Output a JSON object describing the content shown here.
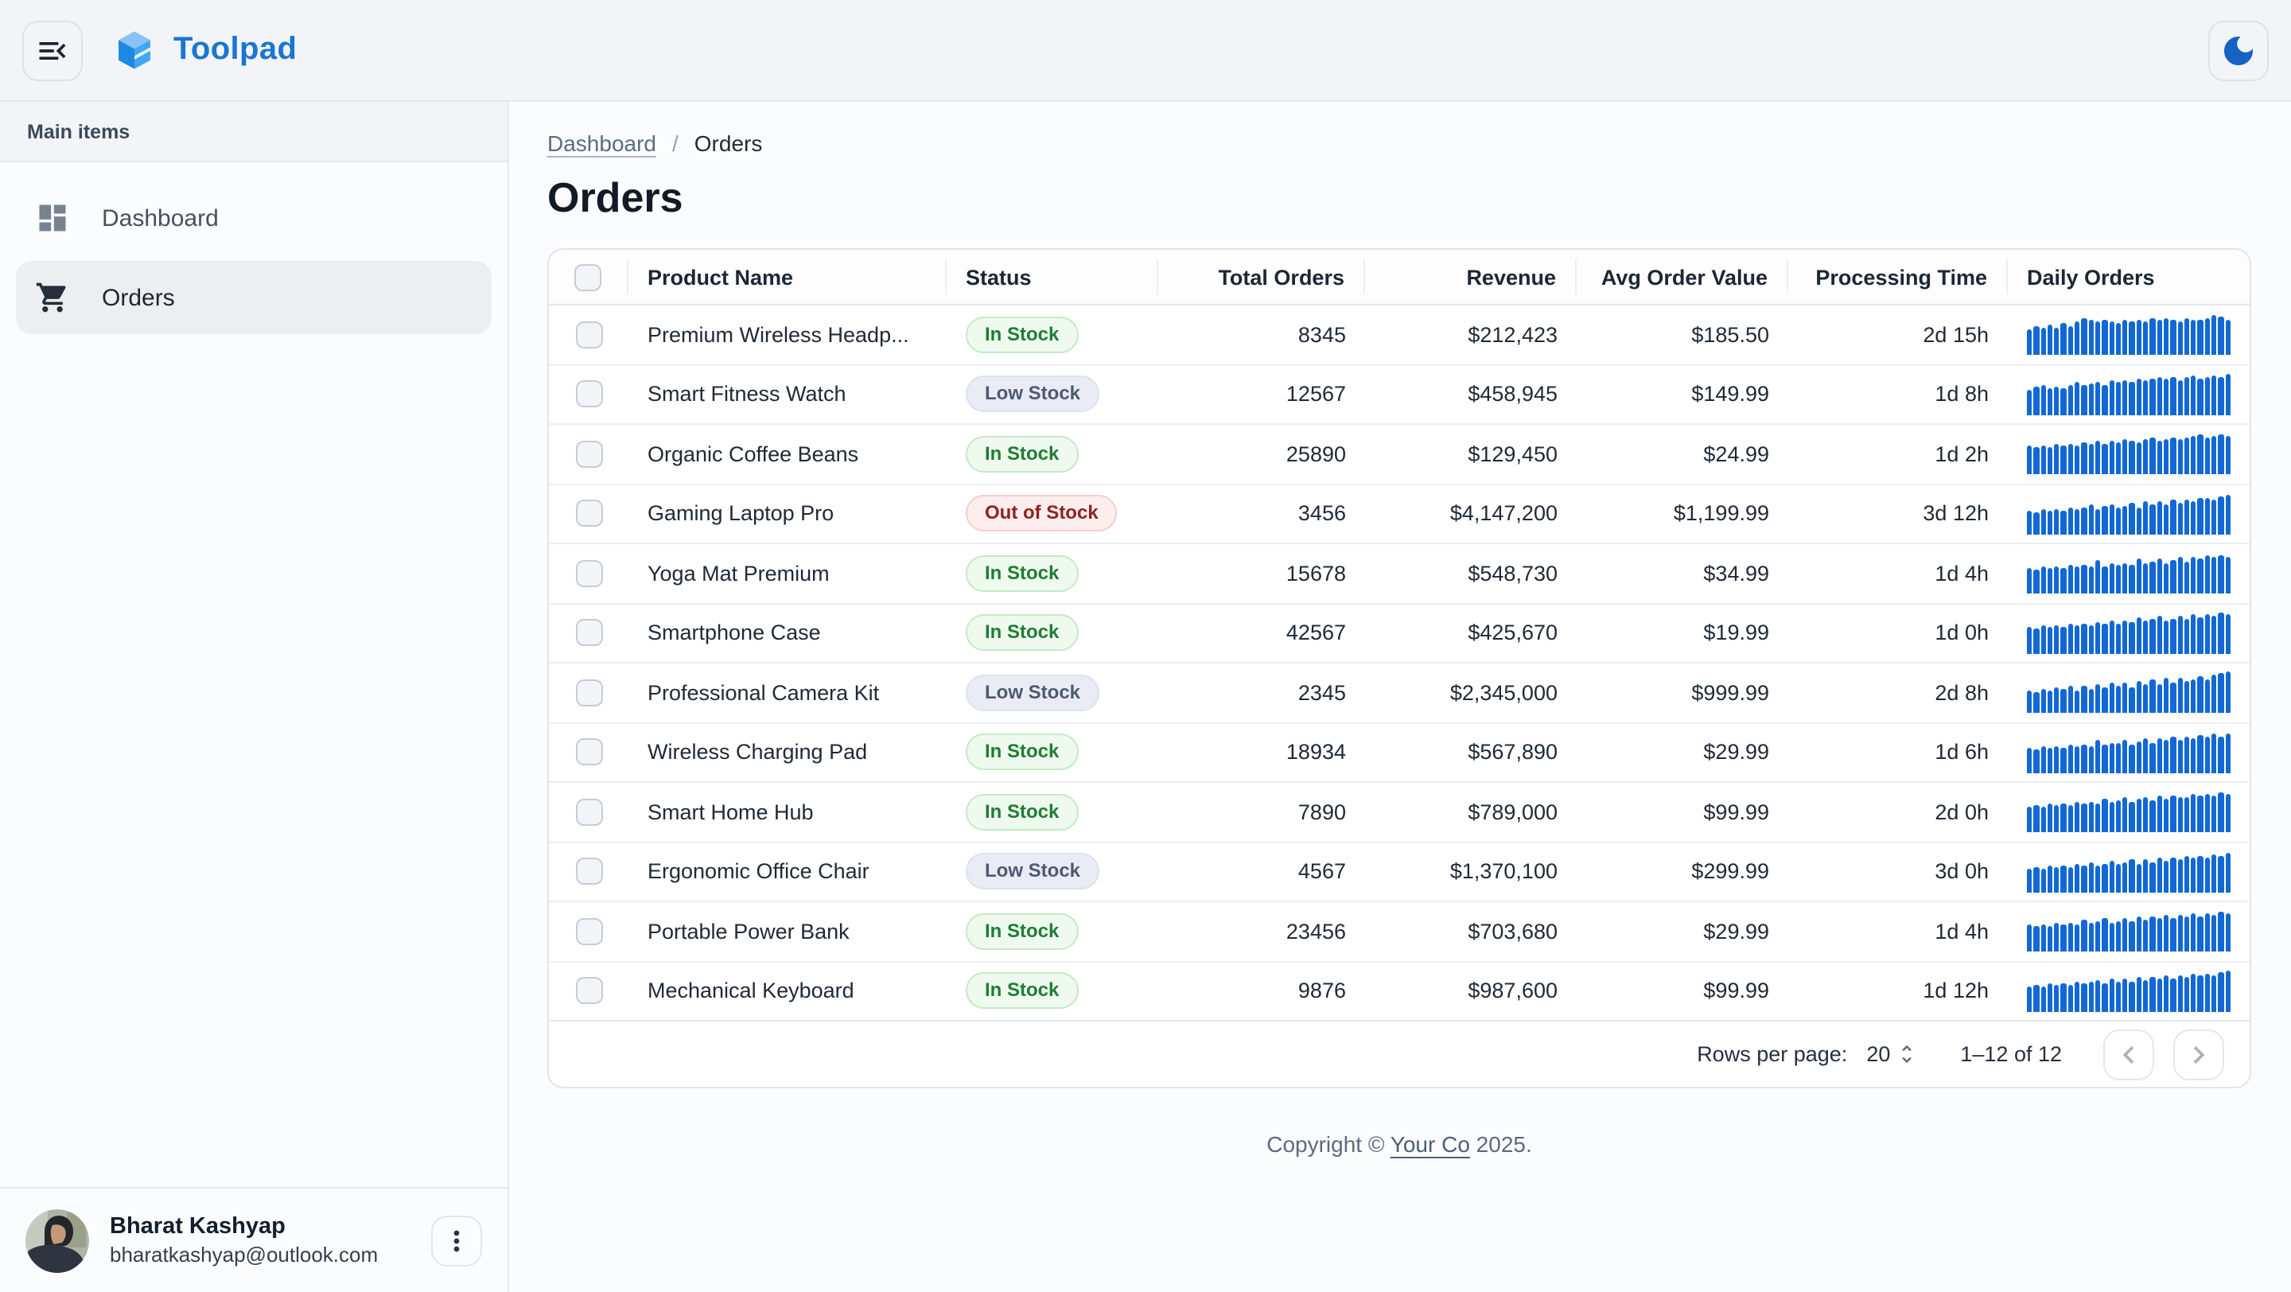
{
  "app": {
    "name": "Toolpad"
  },
  "header": {
    "menu_button": "collapse-navigation",
    "theme_toggle": "dark-mode"
  },
  "sidebar": {
    "section_label": "Main items",
    "items": [
      {
        "label": "Dashboard",
        "icon": "dashboard-icon",
        "selected": false
      },
      {
        "label": "Orders",
        "icon": "cart-icon",
        "selected": true
      }
    ],
    "user": {
      "name": "Bharat Kashyap",
      "email": "bharatkashyap@outlook.com"
    }
  },
  "breadcrumb": {
    "link_label": "Dashboard",
    "separator": "/",
    "current": "Orders"
  },
  "page": {
    "title": "Orders"
  },
  "table": {
    "columns": [
      {
        "label": "Product Name",
        "align": "left"
      },
      {
        "label": "Status",
        "align": "left"
      },
      {
        "label": "Total Orders",
        "align": "right"
      },
      {
        "label": "Revenue",
        "align": "right"
      },
      {
        "label": "Avg Order Value",
        "align": "right"
      },
      {
        "label": "Processing Time",
        "align": "right"
      },
      {
        "label": "Daily Orders",
        "align": "left"
      }
    ],
    "rows": [
      {
        "product": "Premium Wireless Headp...",
        "status": "In Stock",
        "status_variant": "in",
        "total_orders": "8345",
        "revenue": "$212,423",
        "avg_order_value": "$185.50",
        "processing_time": "2d 15h",
        "daily_orders": [
          62,
          72,
          65,
          75,
          68,
          78,
          70,
          82,
          88,
          84,
          80,
          86,
          82,
          78,
          84,
          80,
          86,
          82,
          88,
          84,
          90,
          86,
          82,
          88,
          84,
          86,
          90,
          96,
          92,
          86
        ]
      },
      {
        "product": "Smart Fitness Watch",
        "status": "Low Stock",
        "status_variant": "low",
        "total_orders": "12567",
        "revenue": "$458,945",
        "avg_order_value": "$149.99",
        "processing_time": "1d 8h",
        "daily_orders": [
          60,
          68,
          72,
          65,
          70,
          66,
          74,
          78,
          72,
          76,
          80,
          74,
          82,
          78,
          84,
          80,
          86,
          82,
          88,
          92,
          86,
          90,
          84,
          90,
          94,
          88,
          92,
          96,
          90,
          100
        ]
      },
      {
        "product": "Organic Coffee Beans",
        "status": "In Stock",
        "status_variant": "in",
        "total_orders": "25890",
        "revenue": "$129,450",
        "avg_order_value": "$24.99",
        "processing_time": "1d 2h",
        "daily_orders": [
          70,
          66,
          72,
          68,
          74,
          70,
          76,
          72,
          78,
          74,
          80,
          76,
          82,
          78,
          84,
          80,
          78,
          84,
          88,
          82,
          86,
          90,
          84,
          88,
          92,
          96,
          90,
          94,
          98,
          94
        ]
      },
      {
        "product": "Gaming Laptop Pro",
        "status": "Out of Stock",
        "status_variant": "out",
        "total_orders": "3456",
        "revenue": "$4,147,200",
        "avg_order_value": "$1,199.99",
        "processing_time": "3d 12h",
        "daily_orders": [
          58,
          54,
          60,
          56,
          62,
          58,
          64,
          60,
          66,
          72,
          62,
          68,
          74,
          64,
          70,
          76,
          66,
          78,
          72,
          80,
          74,
          82,
          76,
          84,
          78,
          86,
          88,
          82,
          90,
          96
        ]
      },
      {
        "product": "Yoga Mat Premium",
        "status": "In Stock",
        "status_variant": "in",
        "total_orders": "15678",
        "revenue": "$548,730",
        "avg_order_value": "$34.99",
        "processing_time": "1d 4h",
        "daily_orders": [
          64,
          60,
          66,
          62,
          68,
          64,
          70,
          66,
          72,
          68,
          80,
          66,
          74,
          70,
          76,
          72,
          84,
          74,
          78,
          86,
          76,
          80,
          88,
          78,
          90,
          84,
          92,
          88,
          94,
          90
        ]
      },
      {
        "product": "Smartphone Case",
        "status": "In Stock",
        "status_variant": "in",
        "total_orders": "42567",
        "revenue": "$425,670",
        "avg_order_value": "$19.99",
        "processing_time": "1d 0h",
        "daily_orders": [
          66,
          62,
          68,
          64,
          70,
          66,
          72,
          68,
          74,
          70,
          76,
          72,
          78,
          74,
          80,
          76,
          88,
          78,
          82,
          90,
          80,
          84,
          92,
          82,
          94,
          86,
          96,
          90,
          98,
          94
        ]
      },
      {
        "product": "Professional Camera Kit",
        "status": "Low Stock",
        "status_variant": "low",
        "total_orders": "2345",
        "revenue": "$2,345,000",
        "avg_order_value": "$999.99",
        "processing_time": "2d 8h",
        "daily_orders": [
          56,
          52,
          60,
          54,
          62,
          58,
          66,
          56,
          68,
          60,
          72,
          62,
          74,
          66,
          76,
          64,
          78,
          70,
          80,
          72,
          84,
          74,
          86,
          78,
          82,
          88,
          80,
          92,
          96,
          100
        ]
      },
      {
        "product": "Wireless Charging Pad",
        "status": "In Stock",
        "status_variant": "in",
        "total_orders": "18934",
        "revenue": "$567,890",
        "avg_order_value": "$29.99",
        "processing_time": "1d 6h",
        "daily_orders": [
          62,
          58,
          64,
          60,
          66,
          62,
          68,
          64,
          70,
          66,
          78,
          68,
          72,
          74,
          80,
          70,
          76,
          82,
          72,
          84,
          78,
          86,
          80,
          88,
          84,
          90,
          86,
          94,
          88,
          96
        ]
      },
      {
        "product": "Smart Home Hub",
        "status": "In Stock",
        "status_variant": "in",
        "total_orders": "7890",
        "revenue": "$789,000",
        "avg_order_value": "$99.99",
        "processing_time": "2d 0h",
        "daily_orders": [
          64,
          68,
          62,
          70,
          66,
          72,
          68,
          74,
          70,
          76,
          72,
          82,
          74,
          78,
          84,
          76,
          80,
          86,
          78,
          88,
          82,
          90,
          84,
          86,
          92,
          88,
          94,
          90,
          96,
          92
        ]
      },
      {
        "product": "Ergonomic Office Chair",
        "status": "Low Stock",
        "status_variant": "low",
        "total_orders": "4567",
        "revenue": "$1,370,100",
        "avg_order_value": "$299.99",
        "processing_time": "3d 0h",
        "daily_orders": [
          58,
          62,
          56,
          64,
          60,
          66,
          62,
          68,
          64,
          74,
          66,
          70,
          76,
          68,
          72,
          78,
          70,
          80,
          74,
          82,
          76,
          84,
          78,
          86,
          82,
          88,
          84,
          92,
          88,
          96
        ]
      },
      {
        "product": "Portable Power Bank",
        "status": "In Stock",
        "status_variant": "in",
        "total_orders": "23456",
        "revenue": "$703,680",
        "avg_order_value": "$29.99",
        "processing_time": "1d 4h",
        "daily_orders": [
          66,
          62,
          68,
          64,
          70,
          66,
          72,
          68,
          78,
          70,
          74,
          80,
          72,
          76,
          82,
          74,
          84,
          78,
          86,
          80,
          88,
          82,
          90,
          84,
          92,
          86,
          94,
          88,
          96,
          92
        ]
      },
      {
        "product": "Mechanical Keyboard",
        "status": "In Stock",
        "status_variant": "in",
        "total_orders": "9876",
        "revenue": "$987,600",
        "avg_order_value": "$99.99",
        "processing_time": "1d 12h",
        "daily_orders": [
          62,
          66,
          60,
          68,
          64,
          70,
          66,
          72,
          68,
          74,
          76,
          70,
          78,
          72,
          80,
          74,
          82,
          76,
          84,
          78,
          86,
          80,
          88,
          82,
          90,
          86,
          92,
          88,
          96,
          100
        ]
      }
    ]
  },
  "pagination": {
    "rows_per_page_label": "Rows per page:",
    "rows_per_page": "20",
    "range": "1–12 of 12"
  },
  "footer": {
    "prefix": "Copyright © ",
    "link": "Your Co",
    "suffix": " 2025."
  },
  "colors": {
    "accent": "#1976d2",
    "spark_bar": "#1268d4",
    "chip_in_text": "#1e7d32",
    "chip_low_text": "#4d5a70",
    "chip_out_text": "#942020"
  }
}
